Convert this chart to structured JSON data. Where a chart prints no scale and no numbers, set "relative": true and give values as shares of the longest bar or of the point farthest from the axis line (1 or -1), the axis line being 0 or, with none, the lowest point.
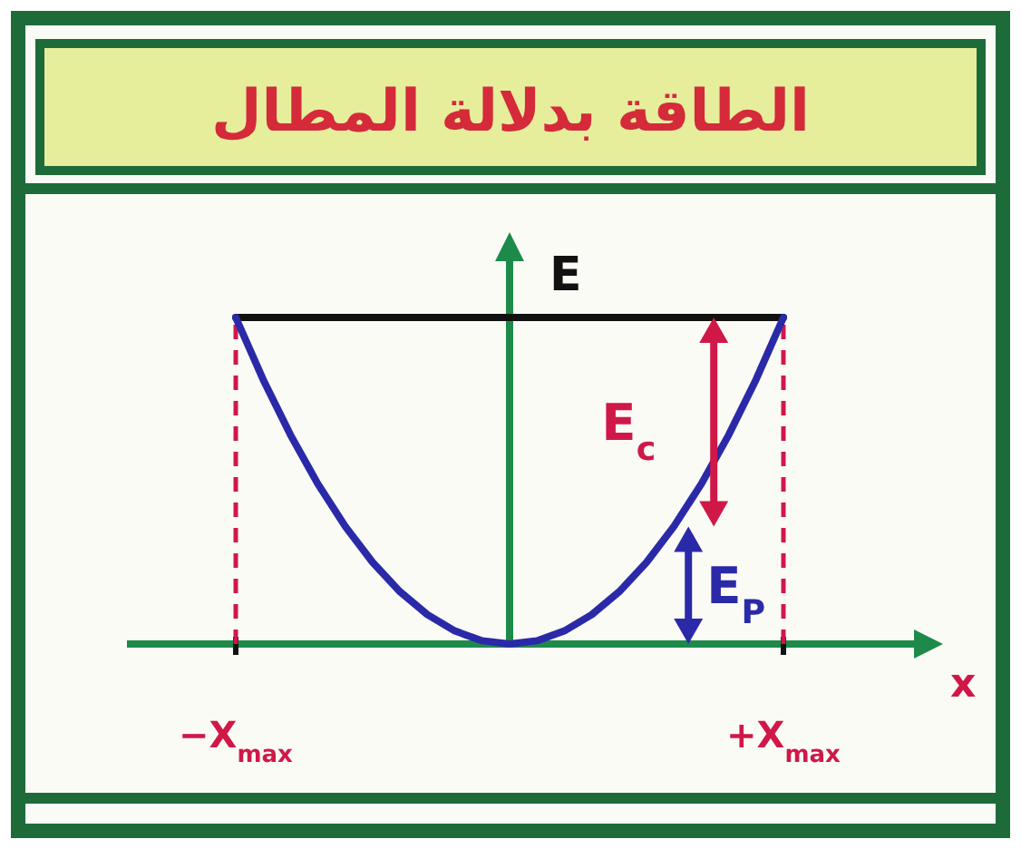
{
  "chart_data": {
    "type": "line",
    "title": "الطاقة بدلالة المطال",
    "xlabel": "x",
    "ylabel": "E",
    "relative": true,
    "tick_labels": "x",
    "categories": [
      "−X$_{max}$",
      null,
      null,
      null,
      null,
      null,
      null,
      null,
      null,
      null,
      null,
      null,
      null,
      null,
      null,
      null,
      null,
      null,
      null,
      null,
      "+X$_{max}$"
    ],
    "series": [
      {
        "color": "#111111",
        "values": [
          1,
          1,
          1,
          1,
          1,
          1,
          1,
          1,
          1,
          1,
          1,
          1,
          1,
          1,
          1,
          1,
          1,
          1,
          1,
          1,
          1
        ]
      },
      {
        "color": "#2a2aa8",
        "values": [
          1,
          0.81,
          0.64,
          0.49,
          0.36,
          0.25,
          0.16,
          0.09,
          0.04,
          0.01,
          0,
          0.01,
          0.04,
          0.09,
          0.16,
          0.25,
          0.36,
          0.49,
          0.64,
          0.81,
          1
        ]
      }
    ],
    "ref_lines": [
      {
        "axis": "x",
        "value": "−X$_{max}$",
        "color": "#d01848",
        "line_style": "dashed"
      },
      {
        "axis": "x",
        "value": "+X$_{max}$",
        "color": "#d01848",
        "line_style": "dashed"
      }
    ],
    "annotations": [
      "E$_{c}$",
      "E$_{P}$"
    ]
  }
}
